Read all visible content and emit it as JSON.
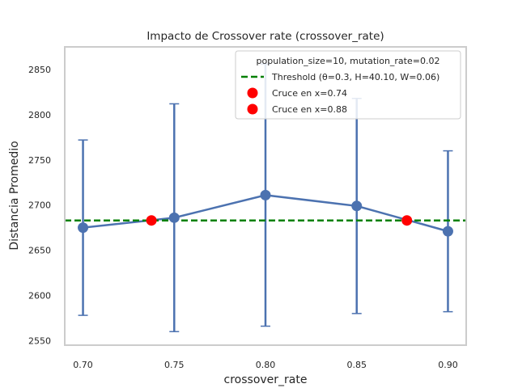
{
  "chart_data": {
    "type": "line",
    "title": "Impacto de Crossover rate (crossover_rate)",
    "xlabel": "crossover_rate",
    "ylabel": "Distancia Promedio",
    "xlim": [
      0.69,
      0.91
    ],
    "ylim": [
      2545,
      2875
    ],
    "xticks": [
      "0.70",
      "0.75",
      "0.80",
      "0.85",
      "0.90"
    ],
    "yticks": [
      "2550",
      "2600",
      "2650",
      "2700",
      "2750",
      "2800",
      "2850"
    ],
    "grid": false,
    "legend_placement": "top-right",
    "legend_title": "population_size=10, mutation_rate=0.02",
    "series": [
      {
        "name": "",
        "color": "#4c72b0",
        "x": [
          0.7,
          0.75,
          0.8,
          0.85,
          0.9
        ],
        "y": [
          2675,
          2686,
          2711,
          2699,
          2671
        ],
        "err_low": [
          2578,
          2560,
          2566,
          2580,
          2582
        ],
        "err_high": [
          2772,
          2812,
          2856,
          2818,
          2760
        ]
      }
    ],
    "threshold": {
      "label": "Threshold (θ=0.3, H=40.10, W=0.06)",
      "y": 2683,
      "color": "#008000"
    },
    "crossings": [
      {
        "label": "Cruce en x=0.74",
        "x": 0.7375,
        "y": 2683,
        "color": "#ff0000"
      },
      {
        "label": "Cruce en x=0.88",
        "x": 0.8775,
        "y": 2683,
        "color": "#ff0000"
      }
    ]
  }
}
